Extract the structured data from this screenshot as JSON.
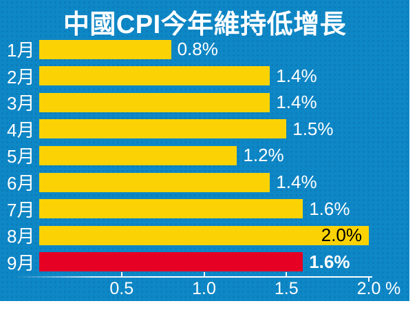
{
  "title": "中國CPI今年維持低增長",
  "colors": {
    "background": "#0E87C6",
    "bar_default": "#FBD304",
    "bar_highlight": "#E50024",
    "text": "#FFFFFF",
    "value_label_inside": "#000000",
    "axis": "#FFFFFF"
  },
  "chart_data": {
    "type": "bar",
    "orientation": "horizontal",
    "title": "中國CPI今年維持低增長",
    "xlabel": "",
    "ylabel": "",
    "xlim": [
      0,
      2.0
    ],
    "x_ticks": [
      0.5,
      1.0,
      1.5,
      2.0
    ],
    "x_tick_labels": [
      "0.5",
      "1.0",
      "1.5",
      "2.0"
    ],
    "x_axis_suffix": "%",
    "grid": false,
    "legend": false,
    "categories": [
      "1月",
      "2月",
      "3月",
      "4月",
      "5月",
      "6月",
      "7月",
      "8月",
      "9月"
    ],
    "values": [
      0.8,
      1.4,
      1.4,
      1.5,
      1.2,
      1.4,
      1.6,
      2.0,
      1.6
    ],
    "bars": [
      {
        "category": "1月",
        "value": 0.8,
        "label": "0.8%",
        "highlight": false,
        "label_inside": false,
        "label_bold": false
      },
      {
        "category": "2月",
        "value": 1.4,
        "label": "1.4%",
        "highlight": false,
        "label_inside": false,
        "label_bold": false
      },
      {
        "category": "3月",
        "value": 1.4,
        "label": "1.4%",
        "highlight": false,
        "label_inside": false,
        "label_bold": false
      },
      {
        "category": "4月",
        "value": 1.5,
        "label": "1.5%",
        "highlight": false,
        "label_inside": false,
        "label_bold": false
      },
      {
        "category": "5月",
        "value": 1.2,
        "label": "1.2%",
        "highlight": false,
        "label_inside": false,
        "label_bold": false
      },
      {
        "category": "6月",
        "value": 1.4,
        "label": "1.4%",
        "highlight": false,
        "label_inside": false,
        "label_bold": false
      },
      {
        "category": "7月",
        "value": 1.6,
        "label": "1.6%",
        "highlight": false,
        "label_inside": false,
        "label_bold": false
      },
      {
        "category": "8月",
        "value": 2.0,
        "label": "2.0%",
        "highlight": false,
        "label_inside": true,
        "label_bold": false
      },
      {
        "category": "9月",
        "value": 1.6,
        "label": "1.6%",
        "highlight": true,
        "label_inside": false,
        "label_bold": true
      }
    ]
  }
}
